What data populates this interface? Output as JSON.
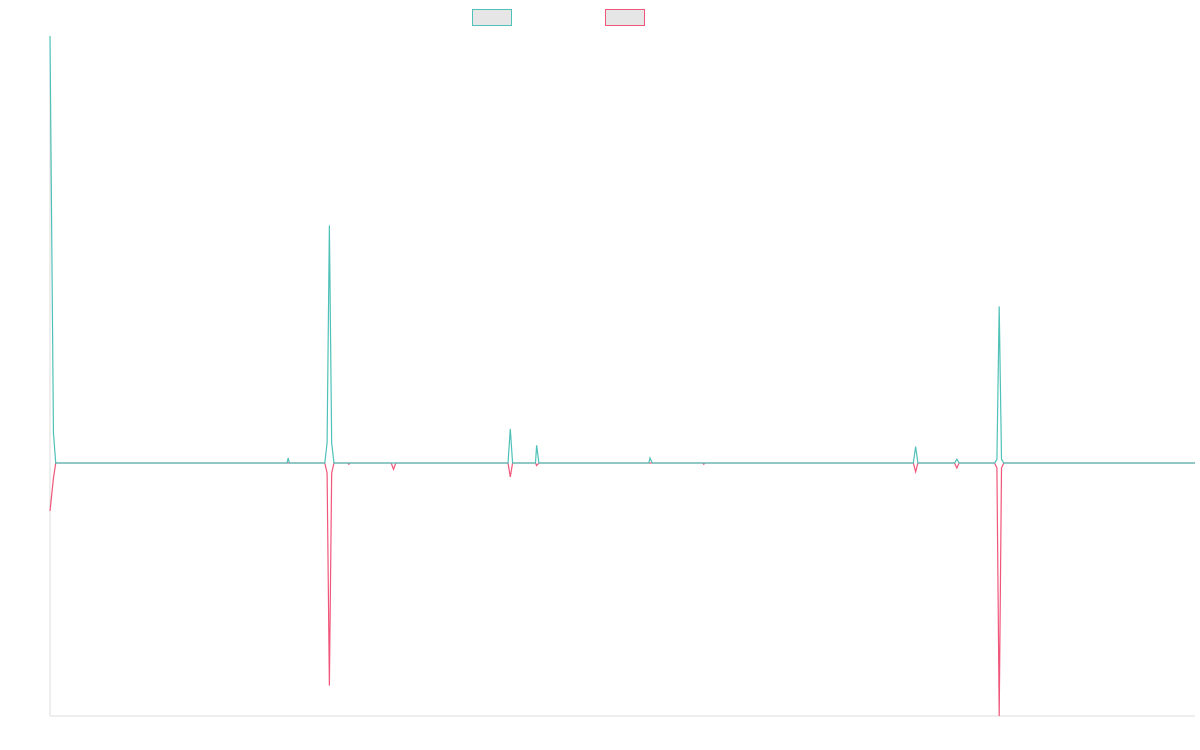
{
  "chart_data": {
    "type": "line",
    "title": "",
    "xlabel": "",
    "ylabel": "",
    "legend_position": "top-center",
    "grid": false,
    "ylim": [
      -1.0,
      1.69
    ],
    "xlim": [
      0,
      1000
    ],
    "colors": {
      "series_a": "#4fc1b8",
      "series_b": "#f0557a",
      "axis": "#dddddd",
      "legend_fill": "#e6e6e6"
    },
    "series": [
      {
        "key": "series_a",
        "points": [
          [
            0,
            1.69
          ],
          [
            3,
            0.12
          ],
          [
            5,
            0
          ],
          [
            207,
            0
          ],
          [
            208,
            0.02
          ],
          [
            209,
            0
          ],
          [
            240,
            0
          ],
          [
            242,
            0.08
          ],
          [
            244,
            0.94
          ],
          [
            246,
            0.08
          ],
          [
            248,
            0
          ],
          [
            400,
            0
          ],
          [
            402,
            0.135
          ],
          [
            404,
            0
          ],
          [
            424,
            0
          ],
          [
            425,
            0.07
          ],
          [
            427,
            0
          ],
          [
            523,
            0
          ],
          [
            524,
            0.02
          ],
          [
            526,
            0
          ],
          [
            754,
            0
          ],
          [
            756,
            0.065
          ],
          [
            758,
            0
          ],
          [
            790,
            0
          ],
          [
            792,
            0.015
          ],
          [
            794,
            0
          ],
          [
            825,
            0
          ],
          [
            827,
            0.015
          ],
          [
            829,
            0.62
          ],
          [
            831,
            0.015
          ],
          [
            833,
            0
          ],
          [
            1000,
            0
          ]
        ]
      },
      {
        "key": "series_b",
        "points": [
          [
            0,
            -0.19
          ],
          [
            3,
            -0.06
          ],
          [
            5,
            0
          ],
          [
            240,
            0
          ],
          [
            242,
            -0.04
          ],
          [
            244,
            -0.88
          ],
          [
            246,
            -0.04
          ],
          [
            248,
            0
          ],
          [
            260,
            0
          ],
          [
            261,
            -0.005
          ],
          [
            262,
            0
          ],
          [
            298,
            0
          ],
          [
            300,
            -0.025
          ],
          [
            302,
            0
          ],
          [
            400,
            0
          ],
          [
            402,
            -0.055
          ],
          [
            404,
            0
          ],
          [
            424,
            0
          ],
          [
            425,
            -0.01
          ],
          [
            427,
            0
          ],
          [
            570,
            0
          ],
          [
            571,
            -0.005
          ],
          [
            572,
            0
          ],
          [
            754,
            0
          ],
          [
            756,
            -0.035
          ],
          [
            758,
            0
          ],
          [
            790,
            0
          ],
          [
            792,
            -0.02
          ],
          [
            794,
            0
          ],
          [
            825,
            0
          ],
          [
            827,
            -0.02
          ],
          [
            829,
            -1.0
          ],
          [
            831,
            -0.02
          ],
          [
            833,
            0
          ],
          [
            1000,
            0
          ]
        ]
      }
    ]
  }
}
